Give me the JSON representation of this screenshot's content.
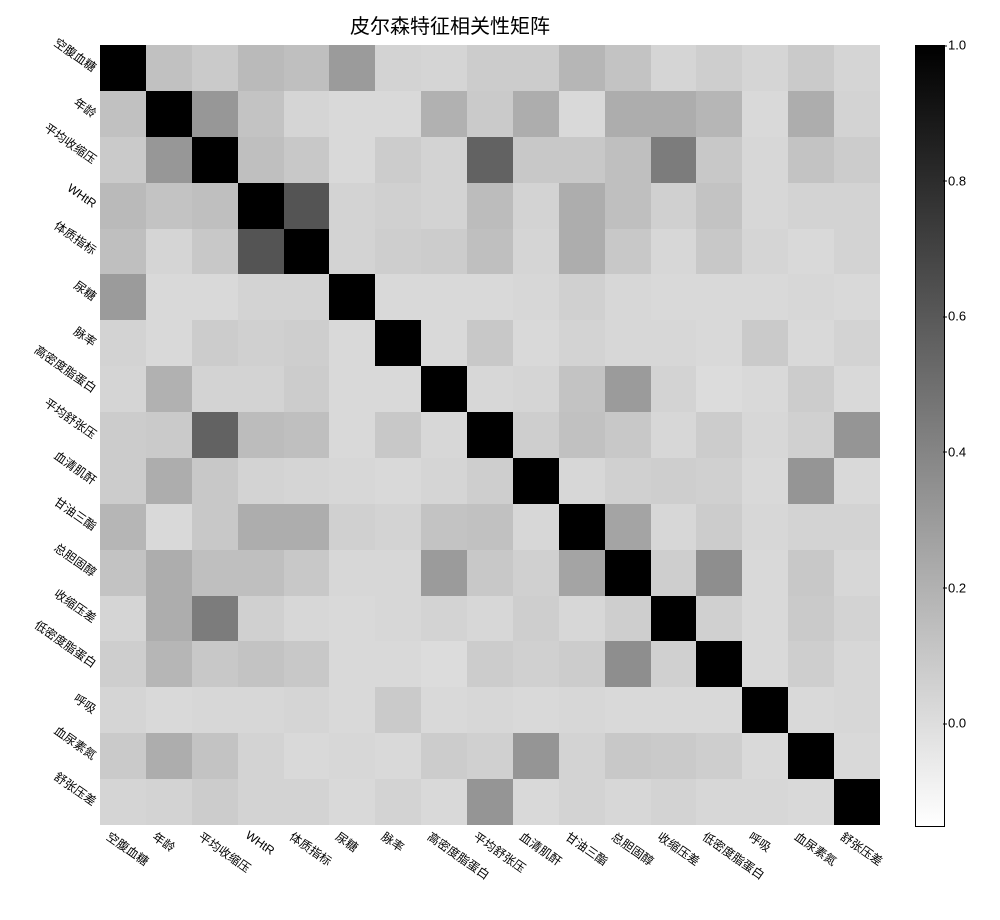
{
  "title": "皮尔森特征相关性矩阵",
  "heatmap": {
    "type": "heatmap",
    "n": 17,
    "labels": [
      "空腹血糖",
      "年龄",
      "平均收缩压",
      "WHtR",
      "体质指标",
      "尿糖",
      "脉率",
      "高密度脂蛋白",
      "平均舒张压",
      "血清肌酐",
      "甘油三酯",
      "总胆固醇",
      "收缩压差",
      "低密度脂蛋白",
      "呼吸",
      "血尿素氮",
      "舒张压差"
    ],
    "cmap_min_color": "#ffffff",
    "cmap_max_color": "#000000",
    "vmin": -0.15,
    "vmax": 1.0,
    "matrix": [
      [
        1.0,
        0.13,
        0.09,
        0.16,
        0.14,
        0.3,
        0.05,
        0.04,
        0.08,
        0.08,
        0.18,
        0.12,
        0.04,
        0.07,
        0.04,
        0.09,
        0.04
      ],
      [
        0.13,
        1.0,
        0.32,
        0.12,
        0.04,
        0.02,
        0.02,
        0.2,
        0.09,
        0.22,
        0.02,
        0.22,
        0.22,
        0.18,
        0.02,
        0.22,
        -0.05
      ],
      [
        0.09,
        0.32,
        1.0,
        0.14,
        0.1,
        0.02,
        0.08,
        0.05,
        0.56,
        0.1,
        0.1,
        0.14,
        0.44,
        0.1,
        0.03,
        0.12,
        0.08
      ],
      [
        0.16,
        0.12,
        0.14,
        1.0,
        0.62,
        0.05,
        0.06,
        -0.05,
        0.15,
        0.05,
        0.22,
        0.14,
        0.06,
        0.12,
        0.03,
        0.05,
        0.05
      ],
      [
        0.14,
        0.04,
        0.1,
        0.62,
        1.0,
        0.05,
        0.07,
        -0.08,
        0.14,
        0.04,
        0.22,
        0.1,
        0.03,
        0.1,
        0.04,
        0.02,
        0.05
      ],
      [
        0.3,
        0.02,
        0.02,
        0.05,
        0.05,
        1.0,
        0.02,
        0.02,
        0.02,
        0.03,
        0.06,
        0.03,
        0.02,
        0.02,
        0.02,
        0.03,
        0.02
      ],
      [
        0.05,
        0.02,
        0.08,
        0.06,
        0.07,
        0.02,
        1.0,
        0.02,
        0.1,
        0.02,
        0.05,
        0.03,
        0.03,
        0.02,
        0.09,
        0.02,
        0.05
      ],
      [
        0.04,
        0.2,
        0.05,
        -0.05,
        -0.08,
        0.02,
        0.02,
        1.0,
        0.03,
        0.04,
        -0.12,
        0.3,
        0.05,
        0.01,
        0.02,
        0.08,
        0.02
      ],
      [
        0.08,
        0.09,
        0.56,
        0.15,
        0.14,
        0.02,
        0.1,
        0.03,
        1.0,
        0.07,
        0.13,
        0.1,
        -0.03,
        0.08,
        0.03,
        0.06,
        0.33
      ],
      [
        0.08,
        0.22,
        0.1,
        0.05,
        0.04,
        0.03,
        0.02,
        0.04,
        0.07,
        1.0,
        0.03,
        0.06,
        0.07,
        0.06,
        0.02,
        0.33,
        0.02
      ],
      [
        0.18,
        0.02,
        0.1,
        0.22,
        0.22,
        0.06,
        0.05,
        -0.12,
        0.13,
        0.03,
        1.0,
        0.26,
        0.03,
        0.08,
        0.03,
        0.05,
        0.05
      ],
      [
        0.12,
        0.22,
        0.14,
        0.14,
        0.1,
        0.03,
        0.03,
        0.3,
        0.1,
        0.06,
        0.26,
        1.0,
        0.07,
        0.36,
        0.02,
        0.1,
        0.03
      ],
      [
        0.04,
        0.22,
        0.44,
        0.06,
        0.03,
        0.02,
        0.03,
        0.05,
        -0.03,
        0.07,
        0.03,
        0.07,
        1.0,
        0.06,
        0.02,
        0.09,
        0.05
      ],
      [
        0.07,
        0.18,
        0.1,
        0.12,
        0.1,
        0.02,
        0.02,
        0.01,
        0.08,
        0.06,
        0.08,
        0.36,
        0.06,
        1.0,
        0.02,
        0.07,
        0.03
      ],
      [
        0.04,
        0.02,
        0.03,
        0.03,
        0.04,
        0.02,
        0.09,
        0.02,
        0.03,
        0.02,
        0.03,
        0.02,
        0.02,
        0.02,
        1.0,
        0.02,
        0.03
      ],
      [
        0.09,
        0.22,
        0.12,
        0.05,
        0.02,
        0.03,
        0.02,
        0.08,
        0.06,
        0.33,
        0.05,
        0.1,
        0.09,
        0.07,
        0.02,
        1.0,
        0.02
      ],
      [
        0.04,
        -0.05,
        0.08,
        0.05,
        0.05,
        0.02,
        0.05,
        0.02,
        0.33,
        0.02,
        0.05,
        0.03,
        0.05,
        0.03,
        0.03,
        0.02,
        1.0
      ]
    ],
    "title_fontsize": 20,
    "label_fontsize": 12,
    "label_rotation_deg": 35,
    "background_color": "#ffffff"
  },
  "colorbar": {
    "ticks": [
      -0.15,
      0.0,
      0.2,
      0.4,
      0.6,
      0.8,
      1.0
    ],
    "tick_labels": [
      "",
      "0.0",
      "0.2",
      "0.4",
      "0.6",
      "0.8",
      "1.0"
    ],
    "tick_fontsize": 13
  }
}
